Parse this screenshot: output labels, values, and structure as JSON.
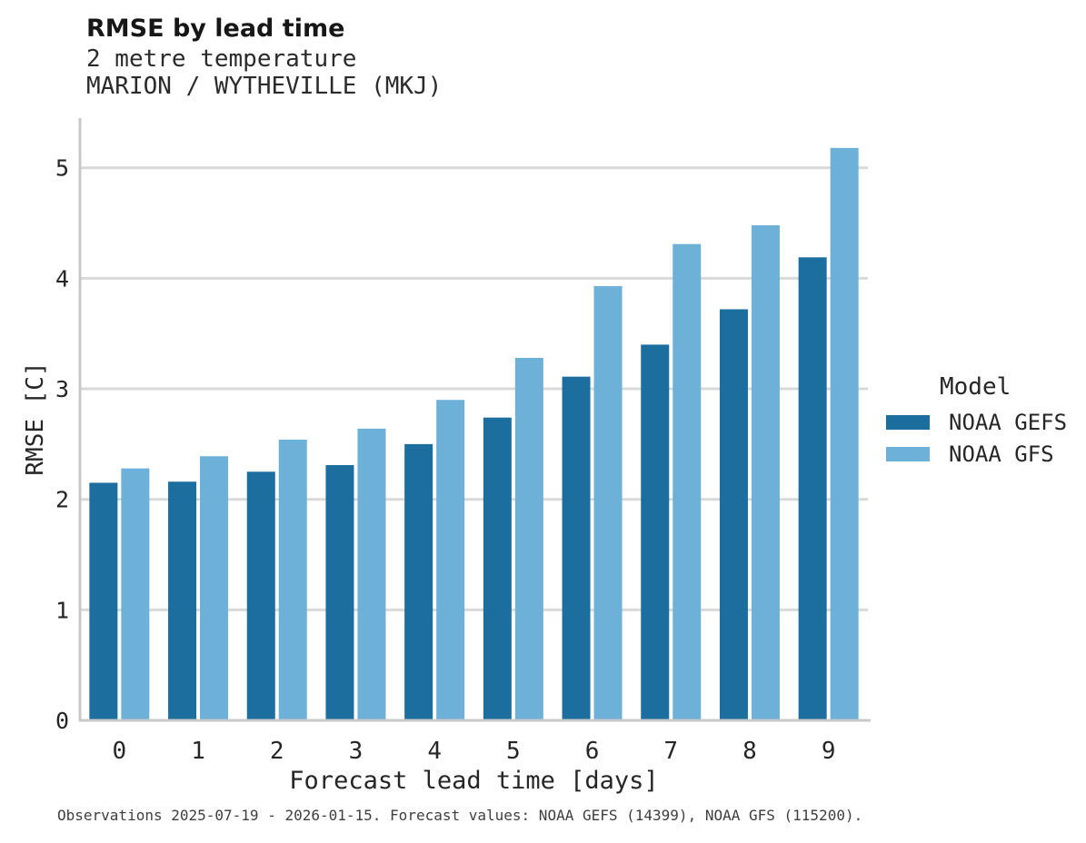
{
  "header": {
    "title": "RMSE by lead time",
    "subtitle": "2 metre temperature",
    "station": "MARION / WYTHEVILLE (MKJ)"
  },
  "chart_data": {
    "type": "bar",
    "title": "RMSE by lead time",
    "subtitle": "2 metre temperature",
    "station": "MARION / WYTHEVILLE (MKJ)",
    "xlabel": "Forecast lead time [days]",
    "ylabel": "RMSE [C]",
    "categories": [
      "0",
      "1",
      "2",
      "3",
      "4",
      "5",
      "6",
      "7",
      "8",
      "9"
    ],
    "series": [
      {
        "name": "NOAA GEFS",
        "color": "#1b6e9e",
        "values": [
          2.15,
          2.16,
          2.25,
          2.31,
          2.5,
          2.74,
          3.11,
          3.4,
          3.72,
          4.19
        ]
      },
      {
        "name": "NOAA GFS",
        "color": "#6db1d8",
        "values": [
          2.28,
          2.39,
          2.54,
          2.64,
          2.9,
          3.28,
          3.93,
          4.31,
          4.48,
          5.18
        ]
      }
    ],
    "ylim": [
      0,
      5.45
    ],
    "yticks": [
      "0",
      "1",
      "2",
      "3",
      "4",
      "5"
    ],
    "grid": true,
    "legend_title": "Model",
    "legend_position": "center-right"
  },
  "footer": {
    "text": "Observations 2025-07-19 - 2026-01-15. Forecast values: NOAA GEFS (14399), NOAA GFS (115200)."
  },
  "style": {
    "grid_color": "#d9d9d9",
    "spine_color": "#c8c8c8",
    "bar_color_gefs": "#1b6e9e",
    "bar_color_gfs": "#6db1d8",
    "text_color": "#262626",
    "footer_color": "#3f3f3f"
  }
}
